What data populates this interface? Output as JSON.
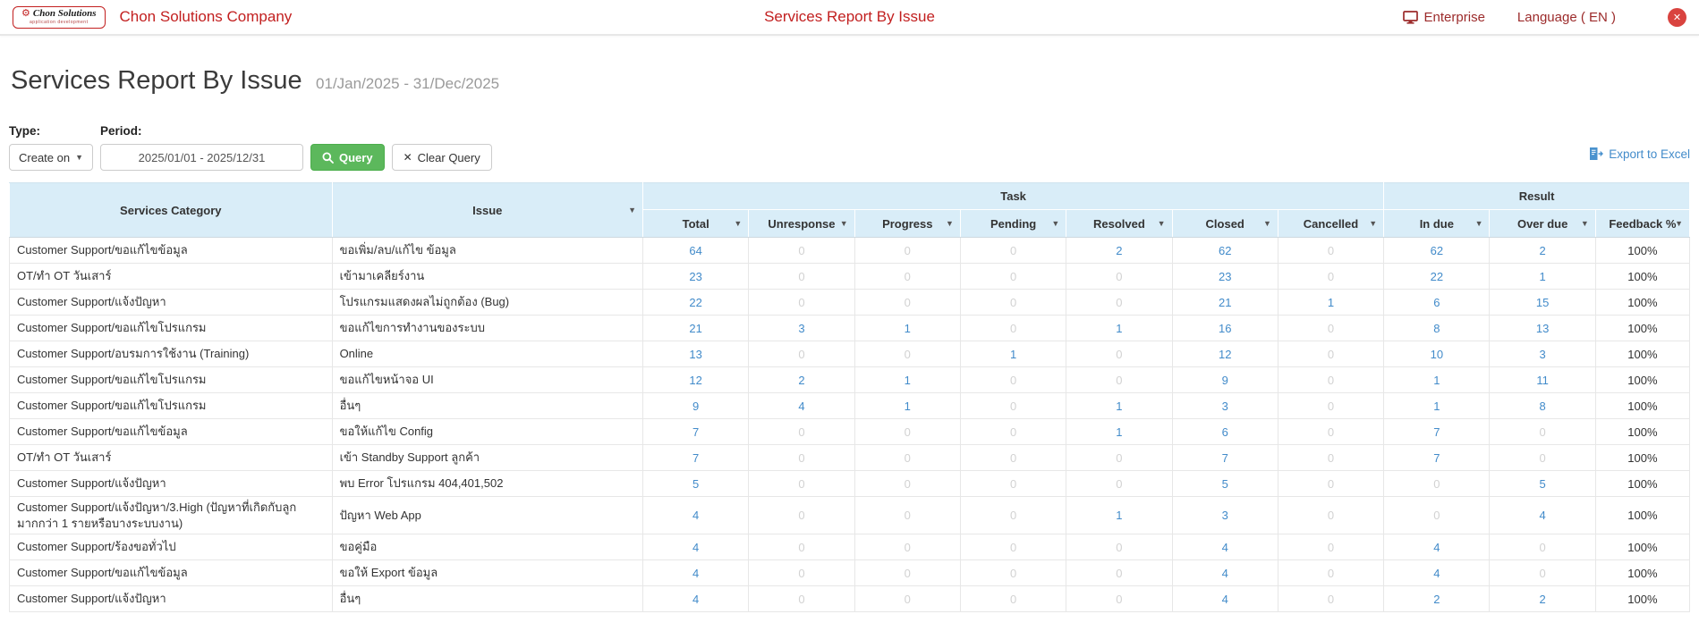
{
  "colors": {
    "brand_red": "#c21f1f",
    "nav_link_red": "#9c2b2b",
    "close_red": "#d9433f",
    "button_green": "#5cb85c",
    "link_blue": "#428bca",
    "table_header_bg": "#d9edf8"
  },
  "header": {
    "logo_brand": "Chon Solutions",
    "logo_tagline": "application development",
    "company_name": "Chon Solutions Company",
    "page_heading": "Services Report By Issue",
    "enterprise_label": "Enterprise",
    "language_label": "Language ( EN )",
    "close_glyph": "✕"
  },
  "title": {
    "text": "Services Report By Issue",
    "date_range": "01/Jan/2025 - 31/Dec/2025"
  },
  "filters": {
    "type_label": "Type:",
    "period_label": "Period:",
    "type_value": "Create on",
    "period_value": "2025/01/01 - 2025/12/31",
    "query_label": "Query",
    "clear_label": "Clear Query",
    "export_label": "Export to Excel"
  },
  "table": {
    "col_category": "Services Category",
    "col_issue": "Issue",
    "group_task": "Task",
    "group_result": "Result",
    "task_columns": [
      "Total",
      "Unresponse",
      "Progress",
      "Pending",
      "Resolved",
      "Closed",
      "Cancelled"
    ],
    "result_columns": [
      "In due",
      "Over due",
      "Feedback %"
    ],
    "rows": [
      {
        "category": "Customer Support/ขอแก้ไขข้อมูล",
        "issue": "ขอเพิ่ม/ลบ/แก้ไข ข้อมูล",
        "values": [
          64,
          0,
          0,
          0,
          2,
          62,
          0,
          62,
          2
        ],
        "feedback": "100%"
      },
      {
        "category": "OT/ทำ OT วันเสาร์",
        "issue": "เข้ามาเคลียร์งาน",
        "values": [
          23,
          0,
          0,
          0,
          0,
          23,
          0,
          22,
          1
        ],
        "feedback": "100%"
      },
      {
        "category": "Customer Support/แจ้งปัญหา",
        "issue": "โปรแกรมแสดงผลไม่ถูกต้อง (Bug)",
        "values": [
          22,
          0,
          0,
          0,
          0,
          21,
          1,
          6,
          15
        ],
        "feedback": "100%"
      },
      {
        "category": "Customer Support/ขอแก้ไขโปรแกรม",
        "issue": "ขอแก้ไขการทำงานของระบบ",
        "values": [
          21,
          3,
          1,
          0,
          1,
          16,
          0,
          8,
          13
        ],
        "feedback": "100%"
      },
      {
        "category": "Customer Support/อบรมการใช้งาน (Training)",
        "issue": "Online",
        "values": [
          13,
          0,
          0,
          1,
          0,
          12,
          0,
          10,
          3
        ],
        "feedback": "100%"
      },
      {
        "category": "Customer Support/ขอแก้ไขโปรแกรม",
        "issue": "ขอแก้ไขหน้าจอ UI",
        "values": [
          12,
          2,
          1,
          0,
          0,
          9,
          0,
          1,
          11
        ],
        "feedback": "100%"
      },
      {
        "category": "Customer Support/ขอแก้ไขโปรแกรม",
        "issue": "อื่นๆ",
        "values": [
          9,
          4,
          1,
          0,
          1,
          3,
          0,
          1,
          8
        ],
        "feedback": "100%"
      },
      {
        "category": "Customer Support/ขอแก้ไขข้อมูล",
        "issue": "ขอให้แก้ไข Config",
        "values": [
          7,
          0,
          0,
          0,
          1,
          6,
          0,
          7,
          0
        ],
        "feedback": "100%"
      },
      {
        "category": "OT/ทำ OT วันเสาร์",
        "issue": "เข้า Standby Support ลูกค้า",
        "values": [
          7,
          0,
          0,
          0,
          0,
          7,
          0,
          7,
          0
        ],
        "feedback": "100%"
      },
      {
        "category": "Customer Support/แจ้งปัญหา",
        "issue": "พบ Error โปรแกรม 404,401,502",
        "values": [
          5,
          0,
          0,
          0,
          0,
          5,
          0,
          0,
          5
        ],
        "feedback": "100%"
      },
      {
        "category": "Customer Support/แจ้งปัญหา/3.High (ปัญหาที่เกิดกับลูกมากกว่า 1 รายหรือบางระบบงาน)",
        "issue": "ปัญหา Web App",
        "values": [
          4,
          0,
          0,
          0,
          1,
          3,
          0,
          0,
          4
        ],
        "feedback": "100%"
      },
      {
        "category": "Customer Support/ร้องขอทั่วไป",
        "issue": "ขอคู่มือ",
        "values": [
          4,
          0,
          0,
          0,
          0,
          4,
          0,
          4,
          0
        ],
        "feedback": "100%"
      },
      {
        "category": "Customer Support/ขอแก้ไขข้อมูล",
        "issue": "ขอให้ Export ข้อมูล",
        "values": [
          4,
          0,
          0,
          0,
          0,
          4,
          0,
          4,
          0
        ],
        "feedback": "100%"
      },
      {
        "category": "Customer Support/แจ้งปัญหา",
        "issue": "อื่นๆ",
        "values": [
          4,
          0,
          0,
          0,
          0,
          4,
          0,
          2,
          2
        ],
        "feedback": "100%"
      }
    ]
  }
}
